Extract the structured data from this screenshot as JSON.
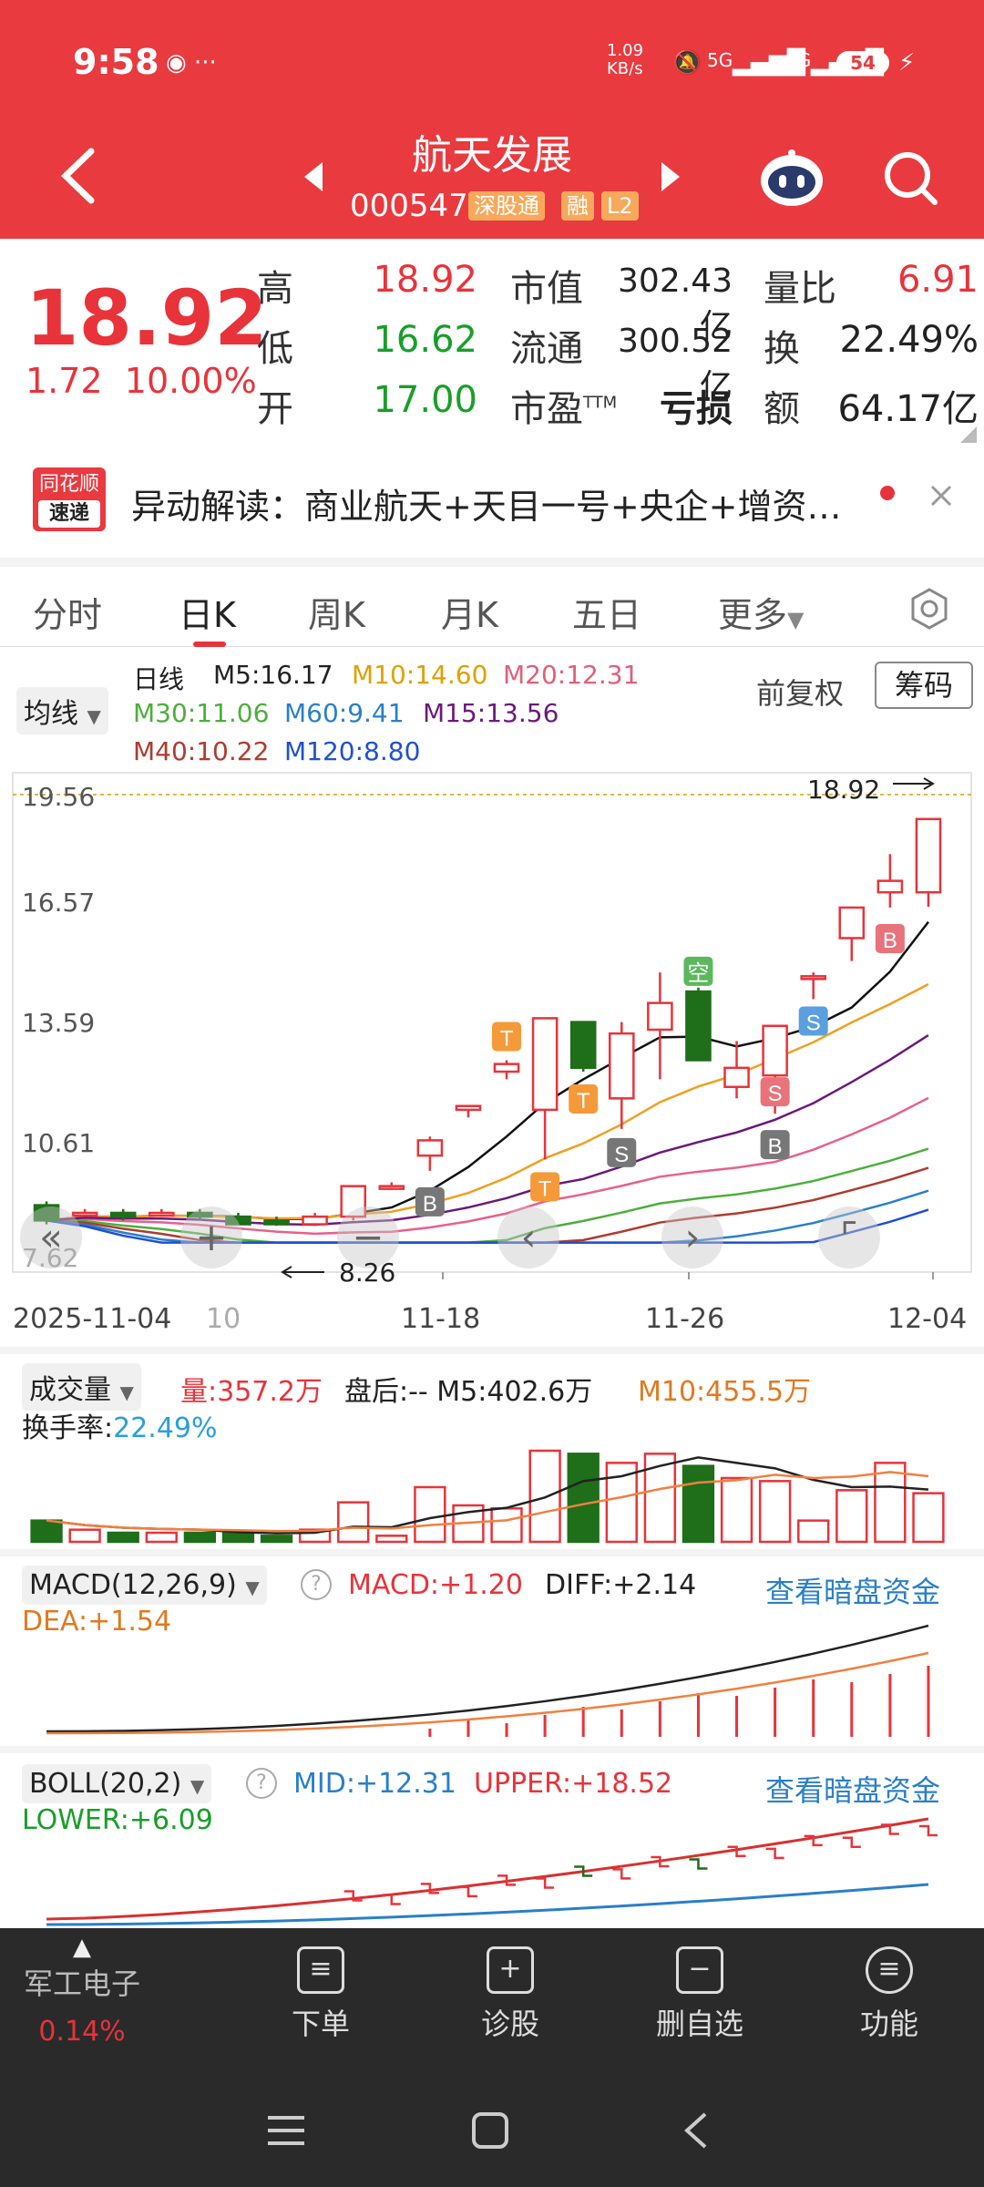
{
  "status": {
    "time": "9:58",
    "speed": "1.09\nKB/s",
    "net1": "5G",
    "net2": "5G",
    "battery": "54"
  },
  "nav": {
    "title": "航天发展",
    "code": "000547",
    "tag1": "深股通",
    "tag2": "融",
    "tag3": "L2"
  },
  "quote": {
    "price": "18.92",
    "change": "1.72",
    "change_pct": "10.00%",
    "high_label": "高",
    "high": "18.92",
    "low_label": "低",
    "low": "16.62",
    "open_label": "开",
    "open": "17.00",
    "mcap_label": "市值",
    "mcap": "302.43亿",
    "float_label": "流通",
    "float": "300.52亿",
    "pe_label": "市盈",
    "pe_sup": "TTM",
    "pe": "亏损",
    "vr_label": "量比",
    "vr": "6.91",
    "turn_label": "换",
    "turn": "22.49%",
    "amt_label": "额",
    "amt": "64.17亿"
  },
  "news": {
    "logo_top": "同花顺",
    "logo_bottom": "速递",
    "text": "异动解读：商业航天+天目一号+央企+增资…"
  },
  "tabs": [
    "分时",
    "日K",
    "周K",
    "月K",
    "五日",
    "更多"
  ],
  "ma": {
    "selector": "均线",
    "type": "日线",
    "m5": "M5:16.17",
    "m10": "M10:14.60",
    "m20": "M20:12.31",
    "m30": "M30:11.06",
    "m60": "M60:9.41",
    "m15": "M15:13.56",
    "m40": "M40:10.22",
    "m120": "M120:8.80",
    "adjust": "前复权",
    "chips": "筹码"
  },
  "colors": {
    "m5": "#111111",
    "m10": "#f0a020",
    "m20": "#e8608a",
    "m30": "#4cae3c",
    "m60": "#2a7fc8",
    "m15": "#6a1a7a",
    "m40": "#b03a2e",
    "m120": "#2050d0",
    "up": "#e8333a",
    "down": "#1e6e1a"
  },
  "axis": {
    "y1": "19.56",
    "y2": "16.57",
    "y3": "13.59",
    "y4": "10.61",
    "y5": "7.62",
    "d1": "2025-11-04",
    "d1b": "10",
    "d2": "11-18",
    "d3": "11-26",
    "d4": "12-04",
    "hi_label": "18.92",
    "lo_label": "8.26"
  },
  "chart_data": {
    "type": "candlestick",
    "ylim": [
      7.62,
      19.56
    ],
    "yticks": [
      "19.56",
      "16.57",
      "13.59",
      "10.61",
      "7.62"
    ],
    "xticks": [
      "2025-11-04",
      "11-18",
      "11-26",
      "12-04"
    ],
    "candles": [
      {
        "o": 8.8,
        "c": 8.4,
        "h": 8.9,
        "l": 8.3
      },
      {
        "o": 8.6,
        "c": 8.6,
        "h": 8.7,
        "l": 8.5
      },
      {
        "o": 8.6,
        "c": 8.5,
        "h": 8.7,
        "l": 8.4
      },
      {
        "o": 8.6,
        "c": 8.6,
        "h": 8.7,
        "l": 8.5
      },
      {
        "o": 8.6,
        "c": 8.5,
        "h": 8.7,
        "l": 8.4
      },
      {
        "o": 8.5,
        "c": 8.3,
        "h": 8.6,
        "l": 8.3
      },
      {
        "o": 8.4,
        "c": 8.3,
        "h": 8.5,
        "l": 8.26
      },
      {
        "o": 8.3,
        "c": 8.5,
        "h": 8.6,
        "l": 8.26
      },
      {
        "o": 8.5,
        "c": 9.3,
        "h": 9.3,
        "l": 8.4
      },
      {
        "o": 9.3,
        "c": 9.3,
        "h": 9.4,
        "l": 9.2
      },
      {
        "o": 10.1,
        "c": 10.5,
        "h": 10.6,
        "l": 9.7
      },
      {
        "o": 11.3,
        "c": 11.4,
        "h": 11.4,
        "l": 11.1
      },
      {
        "o": 12.3,
        "c": 12.5,
        "h": 12.6,
        "l": 12.1
      },
      {
        "o": 11.3,
        "c": 13.7,
        "h": 13.7,
        "l": 10.0
      },
      {
        "o": 13.6,
        "c": 12.4,
        "h": 13.6,
        "l": 12.3
      },
      {
        "o": 11.6,
        "c": 13.3,
        "h": 13.6,
        "l": 10.8
      },
      {
        "o": 13.4,
        "c": 14.1,
        "h": 14.9,
        "l": 12.1
      },
      {
        "o": 14.4,
        "c": 12.6,
        "h": 14.5,
        "l": 12.6
      },
      {
        "o": 11.9,
        "c": 12.4,
        "h": 13.1,
        "l": 11.6
      },
      {
        "o": 12.2,
        "c": 13.5,
        "h": 13.5,
        "l": 11.2
      },
      {
        "o": 14.8,
        "c": 14.8,
        "h": 14.9,
        "l": 14.2
      },
      {
        "o": 15.8,
        "c": 16.6,
        "h": 16.6,
        "l": 15.2
      },
      {
        "o": 17.0,
        "c": 17.3,
        "h": 18.0,
        "l": 16.6
      },
      {
        "o": 17.0,
        "c": 18.92,
        "h": 18.92,
        "l": 16.62
      }
    ],
    "signals": [
      {
        "label": "B",
        "i": 10
      },
      {
        "label": "T",
        "i": 12
      },
      {
        "label": "T",
        "i": 14
      },
      {
        "label": "T",
        "i": 13
      },
      {
        "label": "S",
        "i": 15
      },
      {
        "label": "空",
        "i": 17
      },
      {
        "label": "B",
        "i": 19
      },
      {
        "label": "S",
        "i": 19
      },
      {
        "label": "S",
        "i": 20
      },
      {
        "label": "B",
        "i": 22
      }
    ],
    "volume": {
      "label": "成交量",
      "amount": "量:357.2万",
      "after": "盘后:-- M5:402.6万",
      "m10": "M10:455.5万",
      "turn_label": "换手率:",
      "turn": "22.49%",
      "values": [
        0.7,
        0.4,
        0.3,
        0.3,
        0.3,
        0.3,
        0.2,
        0.4,
        1.3,
        0.2,
        1.8,
        1.2,
        1.1,
        3.0,
        2.9,
        2.6,
        2.9,
        2.5,
        2.1,
        2.0,
        0.7,
        1.7,
        2.6,
        1.6
      ]
    },
    "macd": {
      "label": "MACD(12,26,9)",
      "macd": "MACD:+1.20",
      "diff": "DIFF:+2.14",
      "dea": "DEA:+1.54",
      "link": "查看暗盘资金"
    },
    "boll": {
      "label": "BOLL(20,2)",
      "mid": "MID:+12.31",
      "upper": "UPPER:+18.52",
      "lower": "LOWER:+6.09",
      "link": "查看暗盘资金"
    }
  },
  "bottom": {
    "sector": "军工电子",
    "sector_pct": "0.14%",
    "order": "下单",
    "diagnose": "诊股",
    "delete": "删自选",
    "func": "功能"
  }
}
